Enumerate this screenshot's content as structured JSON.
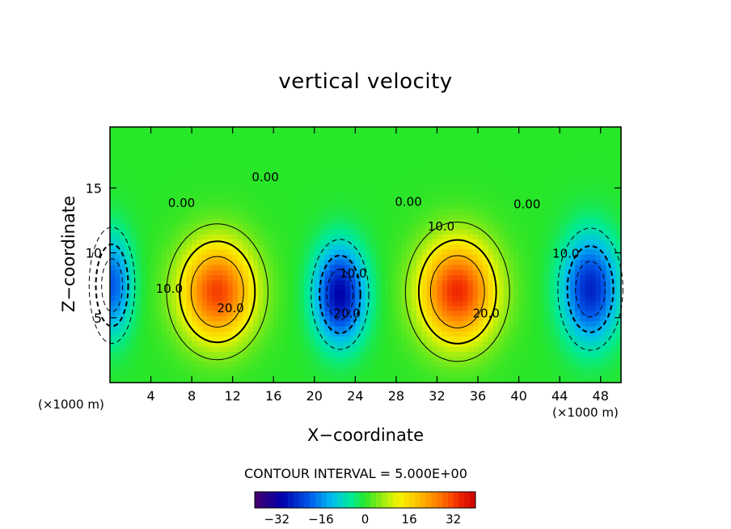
{
  "chart_data": {
    "type": "heatmap",
    "title": "vertical velocity",
    "xlabel": "X−coordinate",
    "ylabel": "Z−coordinate",
    "x_unit_label": "(×1000 m)",
    "x_unit_label_right": "(×1000 m)",
    "xlim": [
      0,
      50
    ],
    "ylim": [
      0,
      19.7
    ],
    "x_ticks": [
      4,
      8,
      12,
      16,
      20,
      24,
      28,
      32,
      36,
      40,
      44,
      48
    ],
    "y_ticks": [
      5,
      10,
      15
    ],
    "contour_interval_text": "CONTOUR INTERVAL = 5.000E+00",
    "colorbar": {
      "range": [
        -40,
        40
      ],
      "ticks": [
        -32,
        -16,
        0,
        16,
        32
      ],
      "tick_labels": [
        "−32",
        "−16",
        "0",
        "16",
        "32"
      ]
    },
    "contour_labels": [
      {
        "text": "0.00",
        "x": 7,
        "y": 13.8
      },
      {
        "text": "0.00",
        "x": 15.2,
        "y": 15.8
      },
      {
        "text": "0.00",
        "x": 29.2,
        "y": 13.9
      },
      {
        "text": "0.00",
        "x": 40.8,
        "y": 13.7
      },
      {
        "text": "10.0",
        "x": 5.8,
        "y": 7.2
      },
      {
        "text": "10.0",
        "x": 23.8,
        "y": 8.4
      },
      {
        "text": "10.0",
        "x": 32.4,
        "y": 12.0
      },
      {
        "text": "10.0",
        "x": 44.6,
        "y": 9.9
      },
      {
        "text": "20.0",
        "x": 11.8,
        "y": 5.7
      },
      {
        "text": "20.0",
        "x": 23.2,
        "y": 5.3
      },
      {
        "text": "20.0",
        "x": 36.8,
        "y": 5.3
      }
    ],
    "features": [
      {
        "name": "updraft",
        "x": 10.5,
        "z": 7.0,
        "peak": 32,
        "sx": 3.6,
        "sz": 3.8
      },
      {
        "name": "updraft",
        "x": 34.0,
        "z": 7.0,
        "peak": 34,
        "sx": 3.7,
        "sz": 3.9
      },
      {
        "name": "downdraft",
        "x": 22.5,
        "z": 6.8,
        "peak": -30,
        "sx": 2.4,
        "sz": 3.6
      },
      {
        "name": "downdraft",
        "x": 47.0,
        "z": 7.2,
        "peak": -26,
        "sx": 2.7,
        "sz": 4.0
      },
      {
        "name": "downdraft",
        "x": 0.2,
        "z": 7.5,
        "peak": -20,
        "sx": 1.9,
        "sz": 3.8
      }
    ]
  }
}
